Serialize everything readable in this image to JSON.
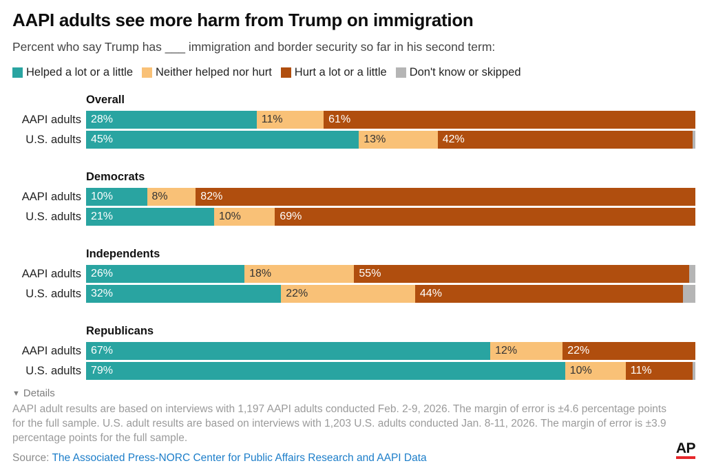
{
  "header": {
    "title": "AAPI adults see more harm from Trump on immigration",
    "subtitle": "Percent who say Trump has ___ immigration and border security so far in his second term:"
  },
  "legend": {
    "items": [
      {
        "label": "Helped a lot or a little",
        "color": "#29a4a1"
      },
      {
        "label": "Neither helped nor hurt",
        "color": "#f9c177"
      },
      {
        "label": "Hurt a lot or a little",
        "color": "#b04e0e"
      },
      {
        "label": "Don't know or skipped",
        "color": "#b5b5b5"
      }
    ]
  },
  "chart_data": {
    "type": "bar",
    "variant": "horizontal-stacked",
    "unit": "percent",
    "axis_range": [
      0,
      100
    ],
    "series": [
      "Helped a lot or a little",
      "Neither helped nor hurt",
      "Hurt a lot or a little",
      "Don't know or skipped"
    ],
    "colors": [
      "#29a4a1",
      "#f9c177",
      "#b04e0e",
      "#b5b5b5"
    ],
    "label_colors": [
      "#ffffff",
      "#333333",
      "#ffffff",
      ""
    ],
    "groups": [
      {
        "title": "Overall",
        "rows": [
          {
            "label": "AAPI adults",
            "values": [
              28,
              11,
              61,
              0
            ],
            "display": [
              "28%",
              "11%",
              "61%",
              ""
            ]
          },
          {
            "label": "U.S. adults",
            "values": [
              45,
              13,
              42,
              0.5
            ],
            "display": [
              "45%",
              "13%",
              "42%",
              ""
            ]
          }
        ]
      },
      {
        "title": "Democrats",
        "rows": [
          {
            "label": "AAPI adults",
            "values": [
              10,
              8,
              82,
              0
            ],
            "display": [
              "10%",
              "8%",
              "82%",
              ""
            ]
          },
          {
            "label": "U.S. adults",
            "values": [
              21,
              10,
              69,
              0
            ],
            "display": [
              "21%",
              "10%",
              "69%",
              ""
            ]
          }
        ]
      },
      {
        "title": "Independents",
        "rows": [
          {
            "label": "AAPI adults",
            "values": [
              26,
              18,
              55,
              1
            ],
            "display": [
              "26%",
              "18%",
              "55%",
              ""
            ]
          },
          {
            "label": "U.S. adults",
            "values": [
              32,
              22,
              44,
              2
            ],
            "display": [
              "32%",
              "22%",
              "44%",
              ""
            ]
          }
        ]
      },
      {
        "title": "Republicans",
        "rows": [
          {
            "label": "AAPI adults",
            "values": [
              67,
              12,
              22,
              0
            ],
            "display": [
              "67%",
              "12%",
              "22%",
              ""
            ]
          },
          {
            "label": "U.S. adults",
            "values": [
              79,
              10,
              11,
              0.5
            ],
            "display": [
              "79%",
              "10%",
              "11%",
              ""
            ]
          }
        ]
      }
    ]
  },
  "details": {
    "toggle_label": "Details",
    "text": "AAPI adult results are based on interviews with 1,197 AAPI adults conducted Feb. 2-9, 2026. The margin of error is ±4.6 percentage points for the full sample. U.S. adult results are based on interviews with 1,203 U.S. adults conducted Jan. 8-11, 2026. The margin of error is ±3.9 percentage points for the full sample."
  },
  "source": {
    "prefix": "Source: ",
    "link_text": "The Associated Press-NORC Center for Public Affairs Research and AAPI Data",
    "link_color": "#1b7dc9"
  },
  "branding": {
    "logo_text": "AP",
    "underline_color": "#e6272b"
  }
}
